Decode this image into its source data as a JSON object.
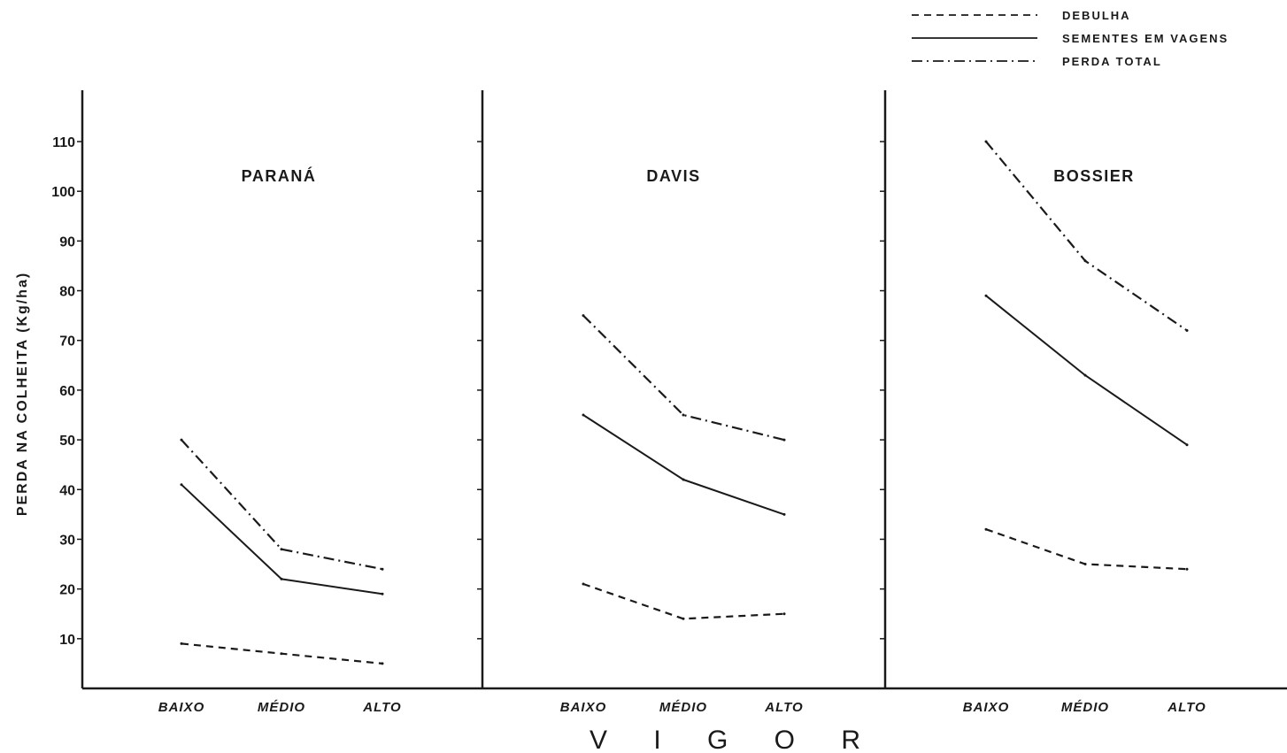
{
  "chart_data": {
    "type": "line",
    "ylabel": "PERDA NA COLHEITA (Kg/ha)",
    "xlabel": "V I G O R",
    "ylim": [
      0,
      110
    ],
    "yticks": [
      10,
      20,
      30,
      40,
      50,
      60,
      70,
      80,
      90,
      100,
      110
    ],
    "categories": [
      "BAIXO",
      "MÉDIO",
      "ALTO"
    ],
    "grid": false,
    "legend_position": "top-right",
    "legend": [
      {
        "name": "DEBULHA",
        "style": "dashed"
      },
      {
        "name": "SEMENTES EM VAGENS",
        "style": "solid"
      },
      {
        "name": "PERDA  TOTAL",
        "style": "dashdot"
      }
    ],
    "panels": [
      {
        "title": "PARANÁ",
        "series": [
          {
            "name": "DEBULHA",
            "values": [
              9,
              7,
              5
            ]
          },
          {
            "name": "SEMENTES EM VAGENS",
            "values": [
              41,
              22,
              19
            ]
          },
          {
            "name": "PERDA  TOTAL",
            "values": [
              50,
              28,
              24
            ]
          }
        ]
      },
      {
        "title": "DAVIS",
        "series": [
          {
            "name": "DEBULHA",
            "values": [
              21,
              14,
              15
            ]
          },
          {
            "name": "SEMENTES EM VAGENS",
            "values": [
              55,
              42,
              35
            ]
          },
          {
            "name": "PERDA  TOTAL",
            "values": [
              75,
              55,
              50
            ]
          }
        ]
      },
      {
        "title": "BOSSIER",
        "series": [
          {
            "name": "DEBULHA",
            "values": [
              32,
              25,
              24
            ]
          },
          {
            "name": "SEMENTES EM VAGENS",
            "values": [
              79,
              63,
              49
            ]
          },
          {
            "name": "PERDA  TOTAL",
            "values": [
              110,
              86,
              72
            ]
          }
        ]
      }
    ]
  }
}
